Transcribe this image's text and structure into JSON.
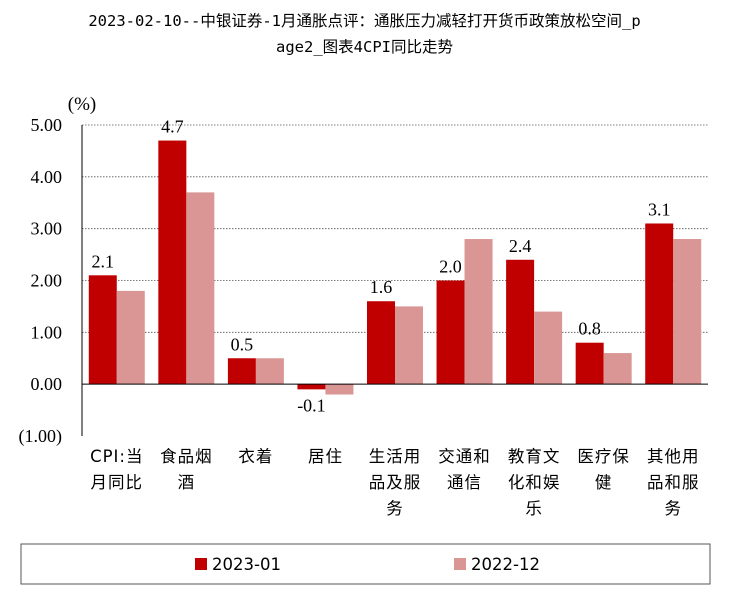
{
  "title_lines": [
    "2023-02-10--中银证券-1月通胀点评：通胀压力减轻打开货币政策放松空间_p",
    "age2_图表4CPI同比走势"
  ],
  "chart_data": {
    "type": "bar",
    "ylabel": "(%)",
    "ylim": [
      -1,
      5
    ],
    "yticks": [
      -1,
      0,
      1,
      2,
      3,
      4,
      5
    ],
    "ytick_labels": [
      "(1.00)",
      "0.00",
      "1.00",
      "2.00",
      "3.00",
      "4.00",
      "5.00"
    ],
    "grid": true,
    "legend_position": "bottom",
    "categories": [
      [
        "CPI:当",
        "月同比"
      ],
      [
        "食品烟",
        "酒"
      ],
      [
        "衣着"
      ],
      [
        "居住"
      ],
      [
        "生活用",
        "品及服",
        "务"
      ],
      [
        "交通和",
        "通信"
      ],
      [
        "教育文",
        "化和娱",
        "乐"
      ],
      [
        "医疗保",
        "健"
      ],
      [
        "其他用",
        "品和服",
        "务"
      ]
    ],
    "series": [
      {
        "name": "2023-01",
        "color": "#c00000",
        "values": [
          2.1,
          4.7,
          0.5,
          -0.1,
          1.6,
          2.0,
          2.4,
          0.8,
          3.1
        ],
        "data_labels": [
          "2.1",
          "4.7",
          "0.5",
          "-0.1",
          "1.6",
          "2.0",
          "2.4",
          "0.8",
          "3.1"
        ]
      },
      {
        "name": "2022-12",
        "color": "#d99694",
        "values": [
          1.8,
          3.7,
          0.5,
          -0.2,
          1.5,
          2.8,
          1.4,
          0.6,
          2.8
        ]
      }
    ]
  }
}
